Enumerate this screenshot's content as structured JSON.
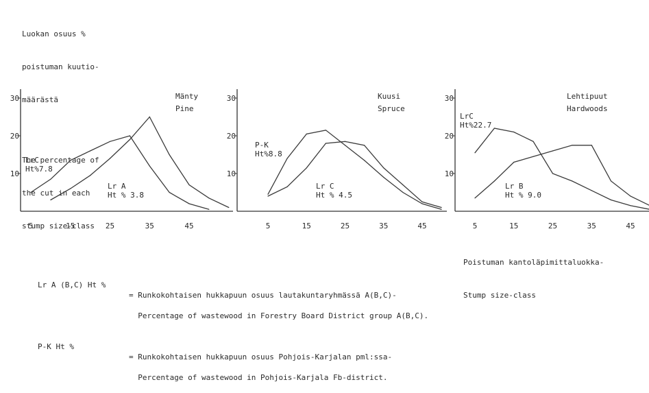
{
  "intro_lines": [
    "Luokan osuus %",
    "poistuman kuutio-",
    "määrästä",
    "The percentage of",
    "the cut in each",
    "stump size-class"
  ],
  "x_caption_lines": [
    "Poistuman kantoläpimittaluokka-",
    "Stump size-class"
  ],
  "legend": [
    {
      "key": "Lr A (B,C) Ht %",
      "lines": [
        "= Runkokohtaisen hukkapuun osuus lautakuntaryhmässä A(B,C)-",
        "  Percentage of wastewood in Forestry Board District group A(B,C)."
      ]
    },
    {
      "key": "P-K Ht %",
      "lines": [
        "= Runkokohtaisen hukkapuun osuus Pohjois-Karjalan pml:ssa-",
        "  Percentage of wastewood in Pohjois-Karjala Fb-district."
      ]
    }
  ],
  "chart_data": [
    {
      "type": "line",
      "title_fi": "Mänty",
      "title_en": "Pine",
      "xlabel": "",
      "ylabel": "",
      "x_ticks": [
        5,
        15,
        25,
        35,
        45
      ],
      "y_ticks": [
        10,
        20,
        30
      ],
      "ylim": [
        0,
        30
      ],
      "xlim": [
        2,
        55
      ],
      "series": [
        {
          "name": "LrC Ht%7.8",
          "label_lines": [
            "LrC",
            "Ht%7.8"
          ],
          "x": [
            5,
            10,
            15,
            20,
            25,
            30,
            35,
            40,
            45,
            50
          ],
          "y": [
            5.0,
            8.5,
            13.5,
            16.0,
            18.5,
            20.0,
            12.0,
            5.0,
            2.0,
            0.5
          ]
        },
        {
          "name": "Lr A Ht % 3.8",
          "label_lines": [
            "Lr A",
            "Ht % 3.8"
          ],
          "x": [
            10,
            15,
            20,
            25,
            30,
            35,
            40,
            45,
            50,
            55
          ],
          "y": [
            3.0,
            6.0,
            9.5,
            14.0,
            19.0,
            25.0,
            15.0,
            7.0,
            3.5,
            1.0
          ]
        }
      ]
    },
    {
      "type": "line",
      "title_fi": "Kuusi",
      "title_en": "Spruce",
      "xlabel": "",
      "ylabel": "",
      "x_ticks": [
        5,
        15,
        25,
        35,
        45
      ],
      "y_ticks": [
        10,
        20,
        30
      ],
      "ylim": [
        0,
        30
      ],
      "xlim": [
        2,
        50
      ],
      "series": [
        {
          "name": "P-K Ht%8.8",
          "label_lines": [
            "P-K",
            "Ht%8.8"
          ],
          "x": [
            5,
            10,
            15,
            20,
            25,
            30,
            35,
            40,
            45,
            50
          ],
          "y": [
            4.5,
            14.0,
            20.5,
            21.5,
            17.5,
            13.5,
            9.0,
            5.0,
            2.0,
            0.5
          ]
        },
        {
          "name": "Lr C Ht % 4.5",
          "label_lines": [
            "Lr C",
            "Ht % 4.5"
          ],
          "x": [
            5,
            10,
            15,
            20,
            25,
            30,
            35,
            40,
            45,
            50
          ],
          "y": [
            4.0,
            6.5,
            11.5,
            18.0,
            18.5,
            17.5,
            11.5,
            7.0,
            2.5,
            1.0
          ]
        }
      ]
    },
    {
      "type": "line",
      "title_fi": "Lehtipuut",
      "title_en": "Hardwoods",
      "xlabel": "",
      "ylabel": "",
      "x_ticks": [
        5,
        15,
        25,
        35,
        45
      ],
      "y_ticks": [
        10,
        20,
        30
      ],
      "ylim": [
        0,
        30
      ],
      "xlim": [
        0,
        50
      ],
      "series": [
        {
          "name": "LrC Ht%22.7",
          "label_lines": [
            "LrC",
            "Ht%22.7"
          ],
          "x": [
            5,
            10,
            15,
            20,
            25,
            30,
            35,
            40,
            45,
            50
          ],
          "y": [
            15.5,
            22.0,
            21.0,
            18.5,
            10.0,
            8.0,
            5.5,
            3.0,
            1.5,
            0.5
          ]
        },
        {
          "name": "Lr B Ht % 9.0",
          "label_lines": [
            "Lr B",
            "Ht % 9.0"
          ],
          "x": [
            5,
            10,
            15,
            20,
            25,
            30,
            35,
            40,
            45,
            50
          ],
          "y": [
            3.5,
            8.0,
            13.0,
            14.5,
            16.0,
            17.5,
            17.5,
            8.0,
            4.0,
            1.5
          ]
        }
      ]
    }
  ]
}
